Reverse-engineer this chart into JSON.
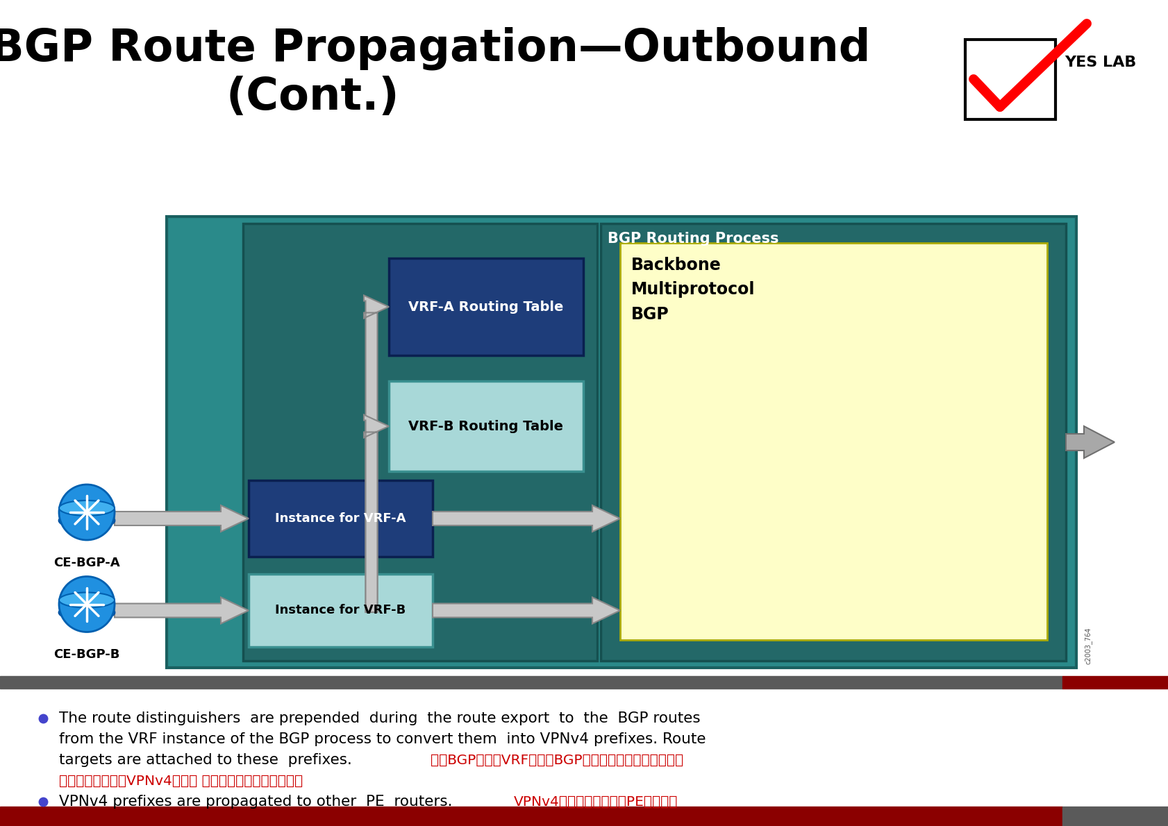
{
  "title_line1": "BGP Route Propagation—Outbound",
  "title_line2": "(Cont.)",
  "bg_color": "#ffffff",
  "header_bar_gray": "#5a5a5a",
  "header_bar_red": "#8b0000",
  "footer_bar_red": "#8b0000",
  "footer_bar_gray": "#5a5a5a",
  "diagram_outer_bg": "#2a8a8a",
  "bgp_process_bg": "#1e7070",
  "backbone_box_bg": "#fefec8",
  "vrf_a_table_bg": "#1e3d7a",
  "vrf_b_table_bg": "#a8d8d8",
  "instance_vrf_a_bg": "#1e3d7a",
  "instance_vrf_b_bg": "#a8d8d8",
  "arrow_fc": "#c8c8c8",
  "arrow_ec": "#888888",
  "router_fc": "#2090e0",
  "router_ec": "#0060b0",
  "bullet_color": "#4444cc",
  "text_red": "#cc0000",
  "bullet1_en1": "The route distinguishers  are prepended  during  the route export  to  the  BGP routes",
  "bullet1_en2": "from the VRF instance of the BGP process to convert them  into VPNv4 prefixes. Route",
  "bullet1_en3": "targets are attached to these  prefixes.",
  "bullet1_cn1": "在从BGP进程的VRF实例到BGP路由的路由导出路由标识符",
  "bullet1_cn2": "之前，将其转换为VPNv4前缀。 路由目标附加到这些前缀。",
  "bullet2_en": "VPNv4 prefixes are propagated to other  PE  routers. ",
  "bullet2_cn": "VPNv4前缀被传播到其他PE路由器。"
}
